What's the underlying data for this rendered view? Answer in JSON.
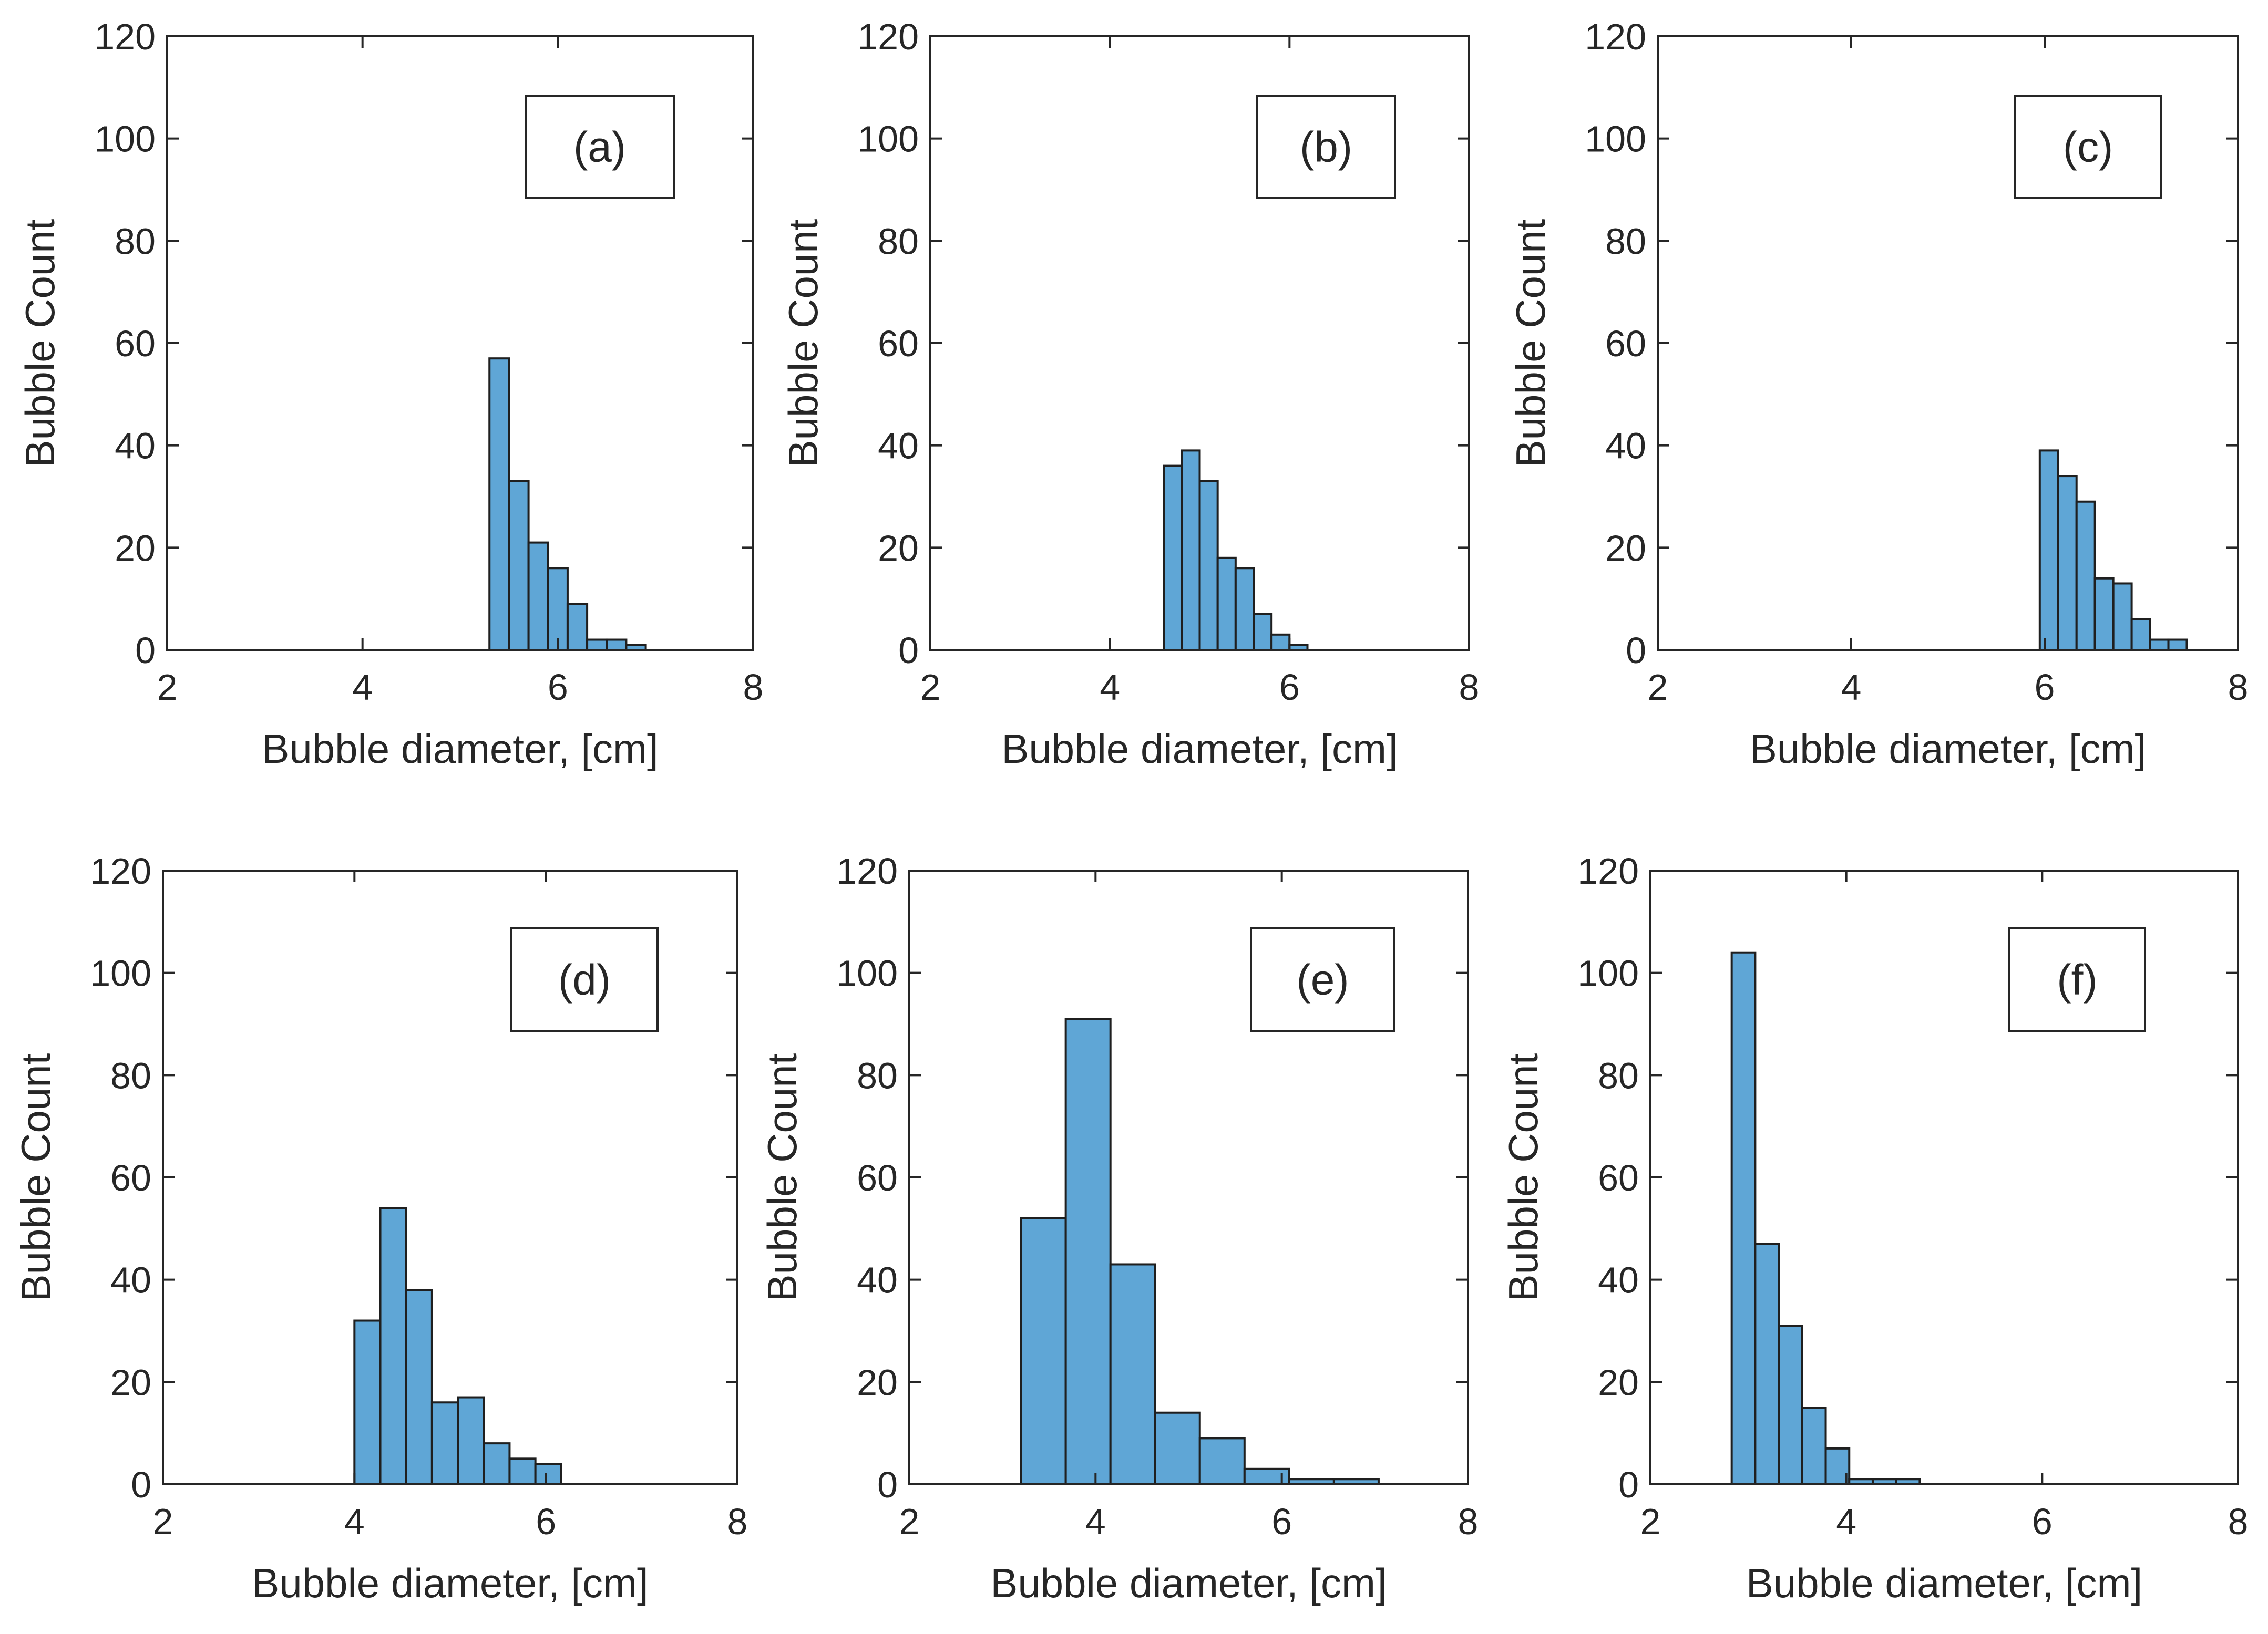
{
  "chart_data": [
    {
      "type": "bar",
      "label": "(a)",
      "xlabel": "Bubble diameter, [cm]",
      "ylabel": "Bubble Count",
      "xlim": [
        2,
        8
      ],
      "ylim": [
        0,
        120
      ],
      "xticks": [
        2,
        4,
        6,
        8
      ],
      "yticks": [
        0,
        20,
        40,
        60,
        80,
        100,
        120
      ],
      "bar_color": "#5fa6d6",
      "bins": [
        {
          "x0": 5.3,
          "x1": 5.5,
          "value": 57
        },
        {
          "x0": 5.5,
          "x1": 5.7,
          "value": 33
        },
        {
          "x0": 5.7,
          "x1": 5.9,
          "value": 21
        },
        {
          "x0": 5.9,
          "x1": 6.1,
          "value": 16
        },
        {
          "x0": 6.1,
          "x1": 6.3,
          "value": 9
        },
        {
          "x0": 6.3,
          "x1": 6.5,
          "value": 2
        },
        {
          "x0": 6.5,
          "x1": 6.7,
          "value": 2
        },
        {
          "x0": 6.7,
          "x1": 6.9,
          "value": 1
        }
      ]
    },
    {
      "type": "bar",
      "label": "(b)",
      "xlabel": "Bubble diameter, [cm]",
      "ylabel": "Bubble Count",
      "xlim": [
        2,
        8
      ],
      "ylim": [
        0,
        120
      ],
      "xticks": [
        2,
        4,
        6,
        8
      ],
      "yticks": [
        0,
        20,
        40,
        60,
        80,
        100,
        120
      ],
      "bar_color": "#5fa6d6",
      "bins": [
        {
          "x0": 4.6,
          "x1": 4.8,
          "value": 36
        },
        {
          "x0": 4.8,
          "x1": 5.0,
          "value": 39
        },
        {
          "x0": 5.0,
          "x1": 5.2,
          "value": 33
        },
        {
          "x0": 5.2,
          "x1": 5.4,
          "value": 18
        },
        {
          "x0": 5.4,
          "x1": 5.6,
          "value": 16
        },
        {
          "x0": 5.6,
          "x1": 5.8,
          "value": 7
        },
        {
          "x0": 5.8,
          "x1": 6.0,
          "value": 3
        },
        {
          "x0": 6.0,
          "x1": 6.2,
          "value": 1
        }
      ]
    },
    {
      "type": "bar",
      "label": "(c)",
      "xlabel": "Bubble diameter, [cm]",
      "ylabel": "Bubble Count",
      "xlim": [
        2,
        8
      ],
      "ylim": [
        0,
        120
      ],
      "xticks": [
        2,
        4,
        6,
        8
      ],
      "yticks": [
        0,
        20,
        40,
        60,
        80,
        100,
        120
      ],
      "bar_color": "#5fa6d6",
      "bins": [
        {
          "x0": 5.95,
          "x1": 6.14,
          "value": 39
        },
        {
          "x0": 6.14,
          "x1": 6.33,
          "value": 34
        },
        {
          "x0": 6.33,
          "x1": 6.52,
          "value": 29
        },
        {
          "x0": 6.52,
          "x1": 6.71,
          "value": 14
        },
        {
          "x0": 6.71,
          "x1": 6.9,
          "value": 13
        },
        {
          "x0": 6.9,
          "x1": 7.09,
          "value": 6
        },
        {
          "x0": 7.09,
          "x1": 7.28,
          "value": 2
        },
        {
          "x0": 7.28,
          "x1": 7.47,
          "value": 2
        }
      ]
    },
    {
      "type": "bar",
      "label": "(d)",
      "xlabel": "Bubble diameter, [cm]",
      "ylabel": "Bubble Count",
      "xlim": [
        2,
        8
      ],
      "ylim": [
        0,
        120
      ],
      "xticks": [
        2,
        4,
        6,
        8
      ],
      "yticks": [
        0,
        20,
        40,
        60,
        80,
        100,
        120
      ],
      "bar_color": "#5fa6d6",
      "bins": [
        {
          "x0": 4.0,
          "x1": 4.27,
          "value": 32
        },
        {
          "x0": 4.27,
          "x1": 4.54,
          "value": 54
        },
        {
          "x0": 4.54,
          "x1": 4.81,
          "value": 38
        },
        {
          "x0": 4.81,
          "x1": 5.08,
          "value": 16
        },
        {
          "x0": 5.08,
          "x1": 5.35,
          "value": 17
        },
        {
          "x0": 5.35,
          "x1": 5.62,
          "value": 8
        },
        {
          "x0": 5.62,
          "x1": 5.89,
          "value": 5
        },
        {
          "x0": 5.89,
          "x1": 6.16,
          "value": 4
        }
      ]
    },
    {
      "type": "bar",
      "label": "(e)",
      "xlabel": "Bubble diameter, [cm]",
      "ylabel": "Bubble Count",
      "xlim": [
        2,
        8
      ],
      "ylim": [
        0,
        120
      ],
      "xticks": [
        2,
        4,
        6,
        8
      ],
      "yticks": [
        0,
        20,
        40,
        60,
        80,
        100,
        120
      ],
      "bar_color": "#5fa6d6",
      "bins": [
        {
          "x0": 3.2,
          "x1": 3.68,
          "value": 52
        },
        {
          "x0": 3.68,
          "x1": 4.16,
          "value": 91
        },
        {
          "x0": 4.16,
          "x1": 4.64,
          "value": 43
        },
        {
          "x0": 4.64,
          "x1": 5.12,
          "value": 14
        },
        {
          "x0": 5.12,
          "x1": 5.6,
          "value": 9
        },
        {
          "x0": 5.6,
          "x1": 6.08,
          "value": 3
        },
        {
          "x0": 6.08,
          "x1": 6.56,
          "value": 1
        },
        {
          "x0": 6.56,
          "x1": 7.04,
          "value": 1
        }
      ]
    },
    {
      "type": "bar",
      "label": "(f)",
      "xlabel": "Bubble diameter, [cm]",
      "ylabel": "Bubble Count",
      "xlim": [
        2,
        8
      ],
      "ylim": [
        0,
        120
      ],
      "xticks": [
        2,
        4,
        6,
        8
      ],
      "yticks": [
        0,
        20,
        40,
        60,
        80,
        100,
        120
      ],
      "bar_color": "#5fa6d6",
      "bins": [
        {
          "x0": 2.83,
          "x1": 3.07,
          "value": 104
        },
        {
          "x0": 3.07,
          "x1": 3.31,
          "value": 47
        },
        {
          "x0": 3.31,
          "x1": 3.55,
          "value": 31
        },
        {
          "x0": 3.55,
          "x1": 3.79,
          "value": 15
        },
        {
          "x0": 3.79,
          "x1": 4.03,
          "value": 7
        },
        {
          "x0": 4.03,
          "x1": 4.27,
          "value": 1
        },
        {
          "x0": 4.27,
          "x1": 4.51,
          "value": 1
        },
        {
          "x0": 4.51,
          "x1": 4.75,
          "value": 1
        }
      ]
    }
  ]
}
